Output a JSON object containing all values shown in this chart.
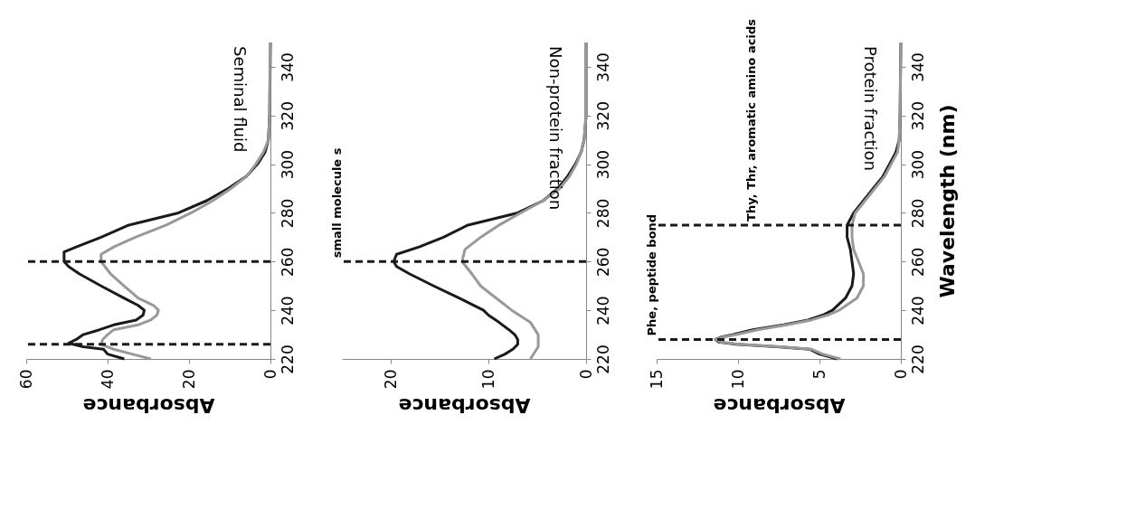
{
  "chart_data": [
    {
      "type": "line",
      "orientation": "horizontal",
      "title": "Seminal fluid",
      "xlabel": "Absorbance",
      "xlim": [
        60,
        0
      ],
      "xticks": [
        0,
        20,
        40,
        60
      ],
      "ylim": [
        220,
        350
      ],
      "yticks": [
        220,
        240,
        260,
        280,
        300,
        320,
        340
      ],
      "grid": false,
      "legend": false,
      "marker": "none",
      "line_style": "solid",
      "series": [
        {
          "color": "#1a1a1a",
          "x": [
            220,
            222,
            224,
            225,
            226.5,
            228,
            230,
            232,
            234,
            236,
            238,
            240,
            242,
            245,
            250,
            255,
            258,
            260,
            264,
            266,
            270,
            275,
            280,
            285,
            290,
            295,
            300,
            305,
            310,
            320,
            350
          ],
          "values": [
            35.9,
            40,
            41,
            46,
            49.6,
            47.7,
            46,
            42,
            38.5,
            33,
            31.3,
            31,
            32.5,
            36,
            41.6,
            47,
            49.6,
            50.7,
            50.7,
            47.7,
            41.6,
            34.8,
            22.6,
            15.7,
            10.4,
            5.9,
            3.2,
            1.3,
            0.5,
            0.2,
            0
          ]
        },
        {
          "color": "#999999",
          "x": [
            220,
            222,
            224,
            226,
            228,
            230,
            232,
            234,
            236,
            238,
            240,
            242,
            245,
            250,
            255,
            260,
            263,
            266,
            270,
            275,
            280,
            285,
            290,
            295,
            300,
            305,
            310,
            320,
            350
          ],
          "values": [
            29.4,
            34,
            38.5,
            41.6,
            41.2,
            40,
            38.5,
            32.5,
            29.4,
            27.9,
            27.5,
            28.7,
            32.5,
            36,
            39.3,
            41.6,
            41.6,
            38.5,
            33.2,
            25.6,
            19.5,
            14.2,
            9.7,
            5.9,
            3.6,
            1.7,
            0.5,
            0.2,
            0.1
          ]
        }
      ],
      "ref_lines": [
        {
          "axis": "y",
          "value": 226,
          "color": "#1a1a1a",
          "line_style": "dashed"
        },
        {
          "axis": "y",
          "value": 260,
          "color": "#1a1a1a",
          "line_style": "dashed"
        }
      ]
    },
    {
      "type": "line",
      "orientation": "horizontal",
      "title": "Non-protein fraction",
      "xlabel": "Absorbance",
      "xlim": [
        25,
        0
      ],
      "xticks": [
        0,
        10,
        20
      ],
      "ylim": [
        220,
        350
      ],
      "yticks": [
        220,
        240,
        260,
        280,
        300,
        320,
        340
      ],
      "grid": false,
      "legend": false,
      "marker": "none",
      "line_style": "solid",
      "series": [
        {
          "color": "#1a1a1a",
          "x": [
            220,
            222,
            224,
            226,
            228,
            230,
            232,
            235,
            238,
            240,
            245,
            250,
            255,
            258,
            260,
            263,
            266,
            270,
            275,
            280,
            285,
            290,
            295,
            300,
            305,
            310,
            320,
            350
          ],
          "values": [
            9.4,
            8.3,
            7.5,
            7.0,
            7.0,
            7.3,
            7.9,
            8.9,
            10,
            10.5,
            13,
            15.6,
            18.1,
            19.4,
            19.7,
            19.4,
            17.1,
            14.6,
            12.1,
            7.0,
            4.4,
            2.9,
            1.9,
            1.1,
            0.5,
            0.2,
            0,
            0
          ]
        },
        {
          "color": "#999999",
          "x": [
            220,
            225,
            230,
            235,
            240,
            245,
            250,
            255,
            260,
            265,
            270,
            275,
            280,
            285,
            290,
            295,
            300,
            305,
            310,
            320,
            350
          ],
          "values": [
            5.7,
            4.9,
            4.9,
            5.7,
            7.6,
            9.2,
            10.8,
            11.7,
            12.7,
            12.4,
            10.8,
            8.9,
            6.7,
            4.4,
            2.7,
            1.7,
            1.0,
            0.5,
            0.2,
            0,
            0
          ]
        }
      ],
      "ref_lines": [
        {
          "axis": "y",
          "value": 260,
          "label": "small molecule s",
          "color": "#1a1a1a",
          "line_style": "dashed"
        }
      ]
    },
    {
      "type": "line",
      "orientation": "horizontal",
      "title": "Protein fraction",
      "xlabel": "Absorbance",
      "ylabel": "Wavelength (nm)",
      "xlim": [
        15,
        0
      ],
      "xticks": [
        0,
        5,
        10,
        15
      ],
      "ylim": [
        220,
        350
      ],
      "yticks": [
        220,
        240,
        260,
        280,
        300,
        320,
        340
      ],
      "grid": false,
      "legend": false,
      "marker": "none",
      "line_style": "solid",
      "series": [
        {
          "color": "#1a1a1a",
          "x": [
            220,
            222,
            224,
            225,
            226,
            227,
            228,
            229,
            230,
            232,
            234,
            236,
            238,
            240,
            245,
            250,
            255,
            260,
            265,
            270,
            275,
            280,
            285,
            290,
            295,
            300,
            305,
            310,
            320,
            350
          ],
          "values": [
            3.9,
            5.0,
            5.6,
            7.6,
            10.1,
            11.2,
            11.4,
            11.0,
            10.3,
            9.1,
            7.2,
            5.7,
            4.8,
            4.2,
            3.4,
            3.0,
            2.9,
            3.0,
            3.1,
            3.3,
            3.3,
            2.9,
            2.3,
            1.7,
            1.1,
            0.7,
            0.3,
            0.1,
            0.05,
            0
          ]
        },
        {
          "color": "#999999",
          "x": [
            220,
            222,
            224,
            225,
            226,
            227,
            228,
            229,
            230,
            232,
            234,
            236,
            238,
            240,
            245,
            250,
            255,
            260,
            265,
            270,
            275,
            280,
            285,
            290,
            295,
            300,
            305,
            310,
            320,
            350
          ],
          "values": [
            3.7,
            4.8,
            5.5,
            7.4,
            9.9,
            11.1,
            11.4,
            10.9,
            10.1,
            8.8,
            7.0,
            5.5,
            4.5,
            3.8,
            2.7,
            2.3,
            2.3,
            2.6,
            2.9,
            3.0,
            3.0,
            2.8,
            2.2,
            1.6,
            1.0,
            0.6,
            0.2,
            0.1,
            0.05,
            0
          ]
        }
      ],
      "ref_lines": [
        {
          "axis": "y",
          "value": 228,
          "label": "Phe, peptide bond",
          "color": "#1a1a1a",
          "line_style": "dashed"
        },
        {
          "axis": "y",
          "value": 275,
          "label": "Thy, Thr, aromatic amino acids",
          "color": "#1a1a1a",
          "line_style": "dashed"
        }
      ]
    }
  ]
}
